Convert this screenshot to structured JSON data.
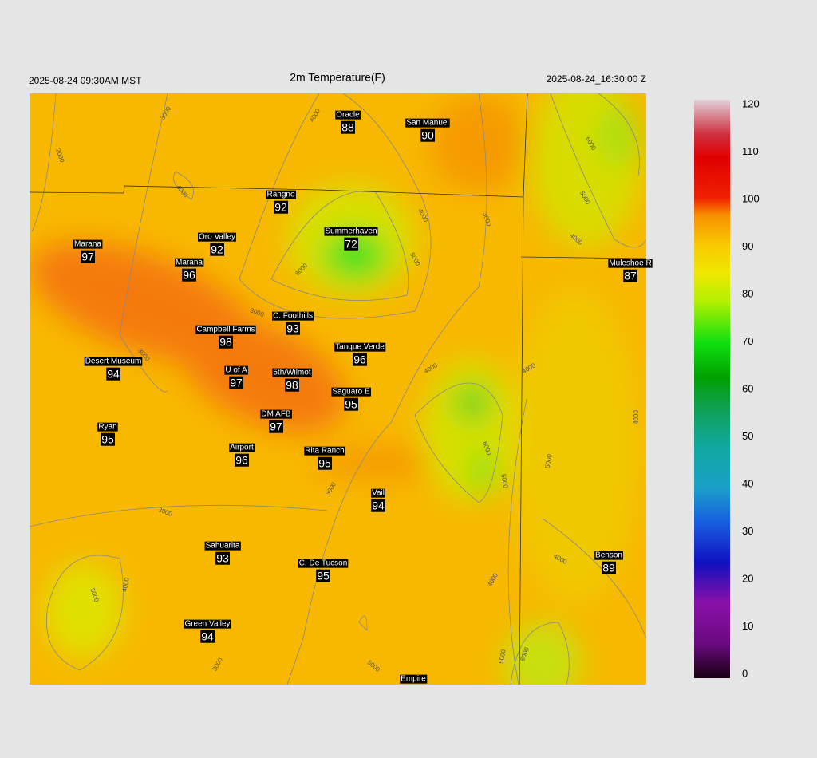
{
  "header": {
    "left": "2025-08-24 09:30AM MST",
    "title": "2m Temperature(F)",
    "right": "2025-08-24_16:30:00 Z"
  },
  "stations": [
    {
      "name": "Oracle",
      "value": 88
    },
    {
      "name": "San Manuel",
      "value": 90
    },
    {
      "name": "Rangno",
      "value": 92
    },
    {
      "name": "Oro Valley",
      "value": 92
    },
    {
      "name": "Marana",
      "value": 97
    },
    {
      "name": "Marana",
      "value": 96
    },
    {
      "name": "Summerhaven",
      "value": 72
    },
    {
      "name": "Muleshoe R",
      "value": 87
    },
    {
      "name": "C. Foothills",
      "value": 93
    },
    {
      "name": "Campbell Farms",
      "value": 98
    },
    {
      "name": "Tanque Verde",
      "value": 96
    },
    {
      "name": "Desert Museum",
      "value": 94
    },
    {
      "name": "U of A",
      "value": 97
    },
    {
      "name": "5th/Wilmot",
      "value": 98
    },
    {
      "name": "Saguaro E",
      "value": 95
    },
    {
      "name": "DM AFB",
      "value": 97
    },
    {
      "name": "Ryan",
      "value": 95
    },
    {
      "name": "Airport",
      "value": 96
    },
    {
      "name": "Rita Ranch",
      "value": 95
    },
    {
      "name": "Vail",
      "value": 94
    },
    {
      "name": "Sahuarita",
      "value": 93
    },
    {
      "name": "Benson",
      "value": 89
    },
    {
      "name": "C. De Tucson",
      "value": 95
    },
    {
      "name": "Green Valley",
      "value": 94
    },
    {
      "name": "Empire"
    }
  ],
  "contour_labels": [
    "3000",
    "2000",
    "4000",
    "4000",
    "4000",
    "3000",
    "5000",
    "6000",
    "3000",
    "3000",
    "4000",
    "4000",
    "6000",
    "5000",
    "4000",
    "4000",
    "5000",
    "6000",
    "5000",
    "3000",
    "3000",
    "4000",
    "5000",
    "4000",
    "4000",
    "3000",
    "5000",
    "5000",
    "6000"
  ],
  "colorbar": {
    "ticks": [
      0,
      10,
      20,
      30,
      40,
      50,
      60,
      70,
      80,
      90,
      100,
      110,
      120
    ],
    "range": [
      0,
      120
    ]
  }
}
